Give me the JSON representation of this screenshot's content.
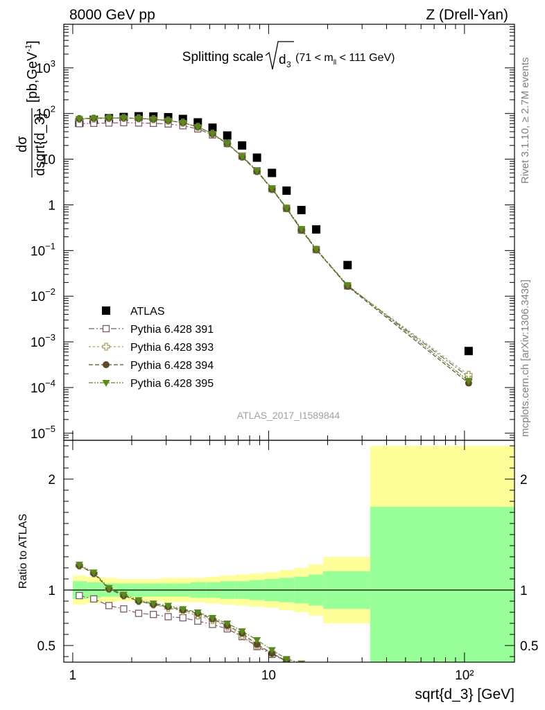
{
  "header": {
    "left": "8000 GeV pp",
    "right": "Z (Drell-Yan)"
  },
  "side_labels": {
    "rivet": "Rivet 3.1.10, ≥ 2.7M events",
    "mcplots": "mcplots.cern.ch [arXiv:1306.3436]"
  },
  "watermark": "ATLAS_2017_I1589844",
  "plot_title": {
    "main": "Splitting scale",
    "var": "d",
    "var_sub": "3",
    "range_pre": "(71 < m",
    "range_sub": "ll",
    "range_post": " < 111 GeV)"
  },
  "ylabel_top": {
    "num": "dσ",
    "den": "dsqrt{d_3}",
    "unit_pre": "[pb,GeV",
    "unit_sup": "-1",
    "unit_post": "]"
  },
  "ylabel_bottom": "Ratio to ATLAS",
  "xlabel": "sqrt{d_3} [GeV]",
  "colors": {
    "data": "#000000",
    "p391": "#7b5a6e",
    "p393": "#a3a058",
    "p394": "#5c4a2a",
    "p395": "#5a8a1e",
    "band_outer": "#ffff99",
    "band_inner": "#99ff99"
  },
  "chart_data": [
    {
      "type": "scatter",
      "panel": "main",
      "xscale": "log",
      "yscale": "log",
      "xlim": [
        0.9,
        180
      ],
      "ylim": [
        7e-06,
        9000
      ],
      "x_tick_labels": [
        "1",
        "10",
        "10²"
      ],
      "y_tick_labels": [
        {
          "base": "10",
          "exp": "−5",
          "v": 1e-05
        },
        {
          "base": "10",
          "exp": "−4",
          "v": 0.0001
        },
        {
          "base": "10",
          "exp": "−3",
          "v": 0.001
        },
        {
          "base": "10",
          "exp": "−2",
          "v": 0.01
        },
        {
          "base": "10",
          "exp": "−1",
          "v": 0.1
        },
        {
          "base": "1",
          "exp": "",
          "v": 1
        },
        {
          "base": "10",
          "exp": "",
          "v": 10
        },
        {
          "base": "10",
          "exp": "2",
          "v": 100
        },
        {
          "base": "10",
          "exp": "3",
          "v": 1000
        }
      ],
      "x": [
        1.08,
        1.28,
        1.53,
        1.82,
        2.17,
        2.58,
        3.07,
        3.65,
        4.35,
        5.17,
        6.15,
        7.32,
        8.72,
        10.4,
        12.35,
        14.7,
        17.5,
        25.3,
        105
      ],
      "series": [
        {
          "name": "ATLAS",
          "marker": "square-filled",
          "values": [
            63,
            73,
            79,
            84,
            87,
            86,
            83,
            76,
            64,
            49,
            33,
            20,
            10.8,
            5.0,
            2.05,
            0.77,
            0.29,
            0.048,
            0.00063
          ]
        },
        {
          "name": "Pythia 6.428 391",
          "marker": "square-open",
          "values": [
            60,
            61,
            62,
            63,
            62,
            61,
            59,
            54,
            46,
            34,
            22,
            11.7,
            5.6,
            2.25,
            0.84,
            0.28,
            0.105,
            0.0168,
            0.00017
          ]
        },
        {
          "name": "Pythia 6.428 393",
          "marker": "cross-open",
          "values": [
            76,
            77,
            79,
            80,
            78,
            75,
            70,
            63,
            51,
            36,
            22,
            11.3,
            5.45,
            2.2,
            0.84,
            0.28,
            0.105,
            0.0168,
            0.00019
          ]
        },
        {
          "name": "Pythia 6.428 394",
          "marker": "circle-filled",
          "values": [
            77,
            79,
            80,
            80,
            78,
            75,
            70,
            63,
            51,
            36,
            22,
            11.2,
            5.4,
            2.2,
            0.83,
            0.28,
            0.104,
            0.0165,
            0.000125
          ]
        },
        {
          "name": "Pythia 6.428 395",
          "marker": "triangle-down-filled",
          "values": [
            77,
            79,
            80,
            80,
            78,
            75,
            70,
            63,
            51,
            36,
            22,
            11.5,
            5.6,
            2.3,
            0.86,
            0.3,
            0.108,
            0.0175,
            0.00014
          ]
        }
      ],
      "legend_position": "lower-left"
    },
    {
      "type": "line",
      "panel": "ratio",
      "xscale": "log",
      "yscale": "linear",
      "xlim": [
        0.9,
        180
      ],
      "ylim": [
        0.35,
        2.35
      ],
      "y_tick_labels": [
        "0.5",
        "1",
        "2"
      ],
      "x_tick_labels": [
        "1",
        "10",
        "10²"
      ],
      "bands": {
        "edges": [
          1,
          1.18,
          1.4,
          1.67,
          1.99,
          2.37,
          2.82,
          3.36,
          4.0,
          4.76,
          5.66,
          6.73,
          8.0,
          9.52,
          11.3,
          13.5,
          16.0,
          19.0,
          33.0,
          180
        ],
        "outer_up": [
          1.13,
          1.12,
          1.11,
          1.1,
          1.1,
          1.1,
          1.11,
          1.11,
          1.11,
          1.12,
          1.13,
          1.14,
          1.15,
          1.16,
          1.18,
          1.2,
          1.23,
          1.3,
          2.3
        ],
        "outer_down": [
          0.87,
          0.88,
          0.89,
          0.9,
          0.9,
          0.9,
          0.89,
          0.89,
          0.89,
          0.88,
          0.87,
          0.86,
          0.85,
          0.84,
          0.82,
          0.8,
          0.77,
          0.7,
          0.3
        ],
        "inner_up": [
          1.08,
          1.07,
          1.06,
          1.06,
          1.06,
          1.06,
          1.06,
          1.06,
          1.07,
          1.07,
          1.08,
          1.08,
          1.09,
          1.1,
          1.11,
          1.12,
          1.14,
          1.17,
          1.75
        ],
        "inner_down": [
          0.92,
          0.93,
          0.94,
          0.94,
          0.94,
          0.94,
          0.94,
          0.94,
          0.93,
          0.93,
          0.92,
          0.92,
          0.91,
          0.9,
          0.89,
          0.88,
          0.86,
          0.83,
          0.3
        ]
      },
      "x": [
        1.08,
        1.28,
        1.53,
        1.82,
        2.17,
        2.58,
        3.07,
        3.65,
        4.35,
        5.17,
        6.15,
        7.32,
        8.72,
        10.4,
        12.35,
        14.7
      ],
      "series": [
        {
          "name": "Pythia 6.428 391",
          "marker": "square-open",
          "values": [
            0.95,
            0.92,
            0.86,
            0.83,
            0.79,
            0.78,
            0.76,
            0.75,
            0.72,
            0.69,
            0.65,
            0.58,
            0.49,
            0.42,
            0.36,
            0.3
          ]
        },
        {
          "name": "Pythia 6.428 393",
          "marker": "cross-open",
          "values": [
            1.22,
            1.15,
            1.01,
            0.95,
            0.9,
            0.87,
            0.84,
            0.81,
            0.77,
            0.73,
            0.67,
            0.59,
            0.5,
            0.43,
            0.36,
            0.3
          ]
        },
        {
          "name": "Pythia 6.428 394",
          "marker": "circle-filled",
          "values": [
            1.22,
            1.15,
            1.01,
            0.95,
            0.9,
            0.87,
            0.85,
            0.82,
            0.79,
            0.74,
            0.68,
            0.61,
            0.51,
            0.43,
            0.36,
            0.3
          ]
        },
        {
          "name": "Pythia 6.428 395",
          "marker": "triangle-down-filled",
          "values": [
            1.23,
            1.16,
            1.02,
            0.96,
            0.91,
            0.88,
            0.86,
            0.83,
            0.8,
            0.75,
            0.7,
            0.63,
            0.55,
            0.46,
            0.38,
            0.34
          ]
        }
      ]
    }
  ]
}
